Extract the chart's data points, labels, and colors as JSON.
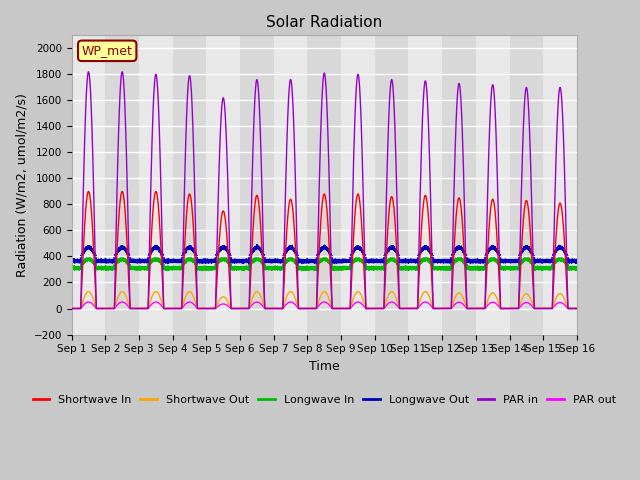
{
  "title": "Solar Radiation",
  "xlabel": "Time",
  "ylabel": "Radiation (W/m2, umol/m2/s)",
  "ylim": [
    -200,
    2100
  ],
  "yticks": [
    -200,
    0,
    200,
    400,
    600,
    800,
    1000,
    1200,
    1400,
    1600,
    1800,
    2000
  ],
  "num_days": 15,
  "resolution": 2880,
  "legend_labels": [
    "Shortwave In",
    "Shortwave Out",
    "Longwave In",
    "Longwave Out",
    "PAR in",
    "PAR out"
  ],
  "legend_colors": [
    "#FF0000",
    "#FFA500",
    "#00BB00",
    "#0000BB",
    "#9900CC",
    "#FF00FF"
  ],
  "station_label": "WP_met",
  "station_label_color": "#8B0000",
  "station_box_color": "#FFFF99",
  "fig_bg_color": "#C8C8C8",
  "plot_bg_color": "#E8E8E8",
  "alt_band_color": "#D8D8D8",
  "grid_color": "#FFFFFF",
  "sw_in_peaks": [
    900,
    900,
    900,
    880,
    750,
    870,
    840,
    880,
    880,
    860,
    870,
    850,
    840,
    830,
    810
  ],
  "par_in_peaks": [
    1820,
    1820,
    1800,
    1790,
    1620,
    1760,
    1760,
    1810,
    1800,
    1760,
    1750,
    1730,
    1720,
    1700,
    1700
  ],
  "sw_out_peaks": [
    130,
    130,
    130,
    130,
    90,
    130,
    130,
    130,
    130,
    130,
    130,
    120,
    120,
    115,
    115
  ],
  "par_out_peaks": [
    50,
    50,
    50,
    50,
    35,
    50,
    50,
    50,
    50,
    50,
    50,
    48,
    48,
    46,
    46
  ],
  "lw_in_base": 330,
  "lw_in_day_boost": 50,
  "lw_in_night_val": 310,
  "lw_out_base": 390,
  "lw_out_day_boost": 80,
  "lw_out_night_val": 365,
  "day_start": 0.27,
  "day_end": 0.73,
  "xtick_labels": [
    "Sep 1",
    "Sep 2",
    "Sep 3",
    "Sep 4",
    "Sep 5",
    "Sep 6",
    "Sep 7",
    "Sep 8",
    "Sep 9",
    "Sep 10",
    "Sep 11",
    "Sep 12",
    "Sep 13",
    "Sep 14",
    "Sep 15",
    "Sep 16"
  ]
}
